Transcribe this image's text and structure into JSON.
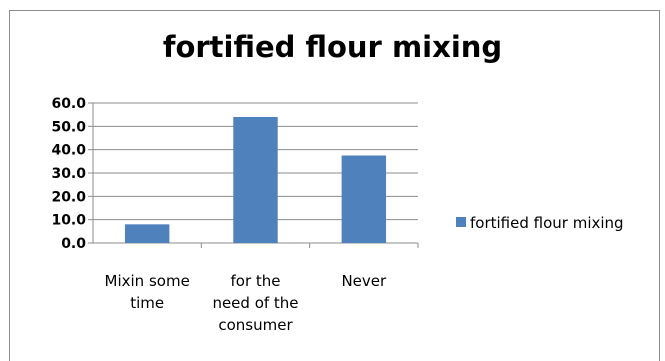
{
  "chart_data": {
    "type": "bar",
    "title": "fortified flour mixing",
    "categories": [
      "Mixin some time",
      "for the need of the consumer",
      "Never"
    ],
    "category_lines": [
      [
        "Mixin some",
        "time"
      ],
      [
        "for the",
        "need of the",
        "consumer"
      ],
      [
        "Never"
      ]
    ],
    "series": [
      {
        "name": "fortified flour mixing",
        "values": [
          8.0,
          54.0,
          37.5
        ],
        "color": "#4f81bd"
      }
    ],
    "ylim": [
      0,
      60
    ],
    "yticks": [
      "0.0",
      "10.0",
      "20.0",
      "30.0",
      "40.0",
      "50.0",
      "60.0"
    ],
    "grid": true,
    "legend_position": "right"
  }
}
